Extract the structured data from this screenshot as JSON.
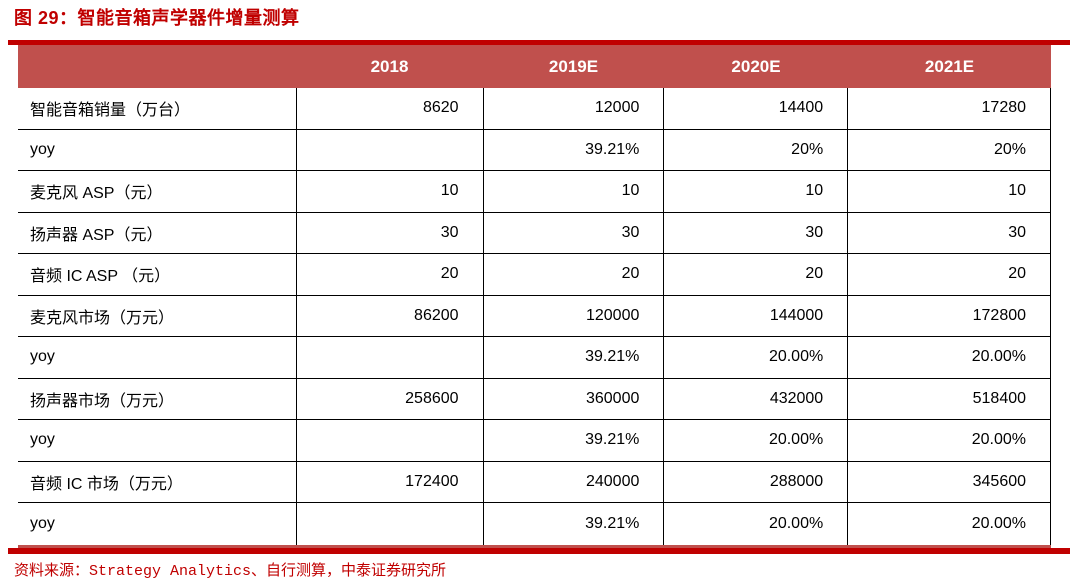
{
  "figure": {
    "title": "图 29：智能音箱声学器件增量测算",
    "source": "资料来源：Strategy Analytics、自行测算，中泰证券研究所"
  },
  "colors": {
    "accent": "#C00000",
    "header_bg": "#C0504D",
    "header_text": "#FFFFFF",
    "body_text": "#000000",
    "grid_border": "#000000"
  },
  "chart_data": {
    "type": "table",
    "title": "智能音箱声学器件增量测算",
    "columns": [
      "",
      "2018",
      "2019E",
      "2020E",
      "2021E"
    ],
    "rows": [
      {
        "label": "智能音箱销量（万台）",
        "values": [
          "8620",
          "12000",
          "14400",
          "17280"
        ]
      },
      {
        "label": "yoy",
        "values": [
          "",
          "39.21%",
          "20%",
          "20%"
        ]
      },
      {
        "label": "麦克风 ASP（元）",
        "values": [
          "10",
          "10",
          "10",
          "10"
        ]
      },
      {
        "label": "扬声器 ASP（元）",
        "values": [
          "30",
          "30",
          "30",
          "30"
        ]
      },
      {
        "label": "音频 IC ASP （元）",
        "values": [
          "20",
          "20",
          "20",
          "20"
        ]
      },
      {
        "label": "麦克风市场（万元）",
        "values": [
          "86200",
          "120000",
          "144000",
          "172800"
        ]
      },
      {
        "label": "yoy",
        "values": [
          "",
          "39.21%",
          "20.00%",
          "20.00%"
        ]
      },
      {
        "label": "扬声器市场（万元）",
        "values": [
          "258600",
          "360000",
          "432000",
          "518400"
        ]
      },
      {
        "label": "yoy",
        "values": [
          "",
          "39.21%",
          "20.00%",
          "20.00%"
        ]
      },
      {
        "label": "音频 IC 市场（万元）",
        "values": [
          "172400",
          "240000",
          "288000",
          "345600"
        ]
      },
      {
        "label": "yoy",
        "values": [
          "",
          "39.21%",
          "20.00%",
          "20.00%"
        ]
      }
    ]
  }
}
